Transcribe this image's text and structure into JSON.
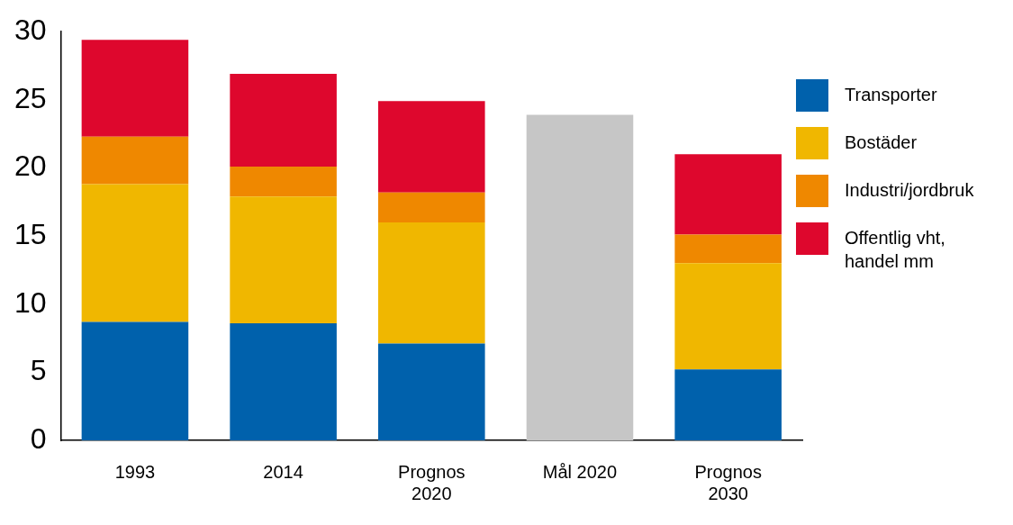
{
  "chart_data": {
    "type": "bar",
    "stacked": true,
    "categories": [
      "1993",
      "2014",
      "Prognos 2020",
      "Mål 2020",
      "Prognos 2030"
    ],
    "series": [
      {
        "name": "Transporter",
        "color": "#0061ac",
        "values": [
          8.7,
          8.6,
          7.1,
          null,
          5.2
        ]
      },
      {
        "name": "Bostäder",
        "color": "#f0b700",
        "values": [
          10.1,
          9.3,
          8.9,
          null,
          7.8
        ]
      },
      {
        "name": "Industri/jordbruk",
        "color": "#ef8800",
        "values": [
          3.5,
          2.2,
          2.2,
          null,
          2.1
        ]
      },
      {
        "name": "Offentlig vht, handel mm",
        "color": "#de072d",
        "values": [
          7.1,
          6.8,
          6.7,
          null,
          5.9
        ]
      },
      {
        "color": "#c6c6c6",
        "values": [
          null,
          null,
          null,
          23.9,
          null
        ]
      }
    ],
    "ylim": [
      0,
      30
    ],
    "yticks": [
      0,
      5,
      10,
      15,
      20,
      25,
      30
    ],
    "grid": false,
    "legend": "right"
  }
}
